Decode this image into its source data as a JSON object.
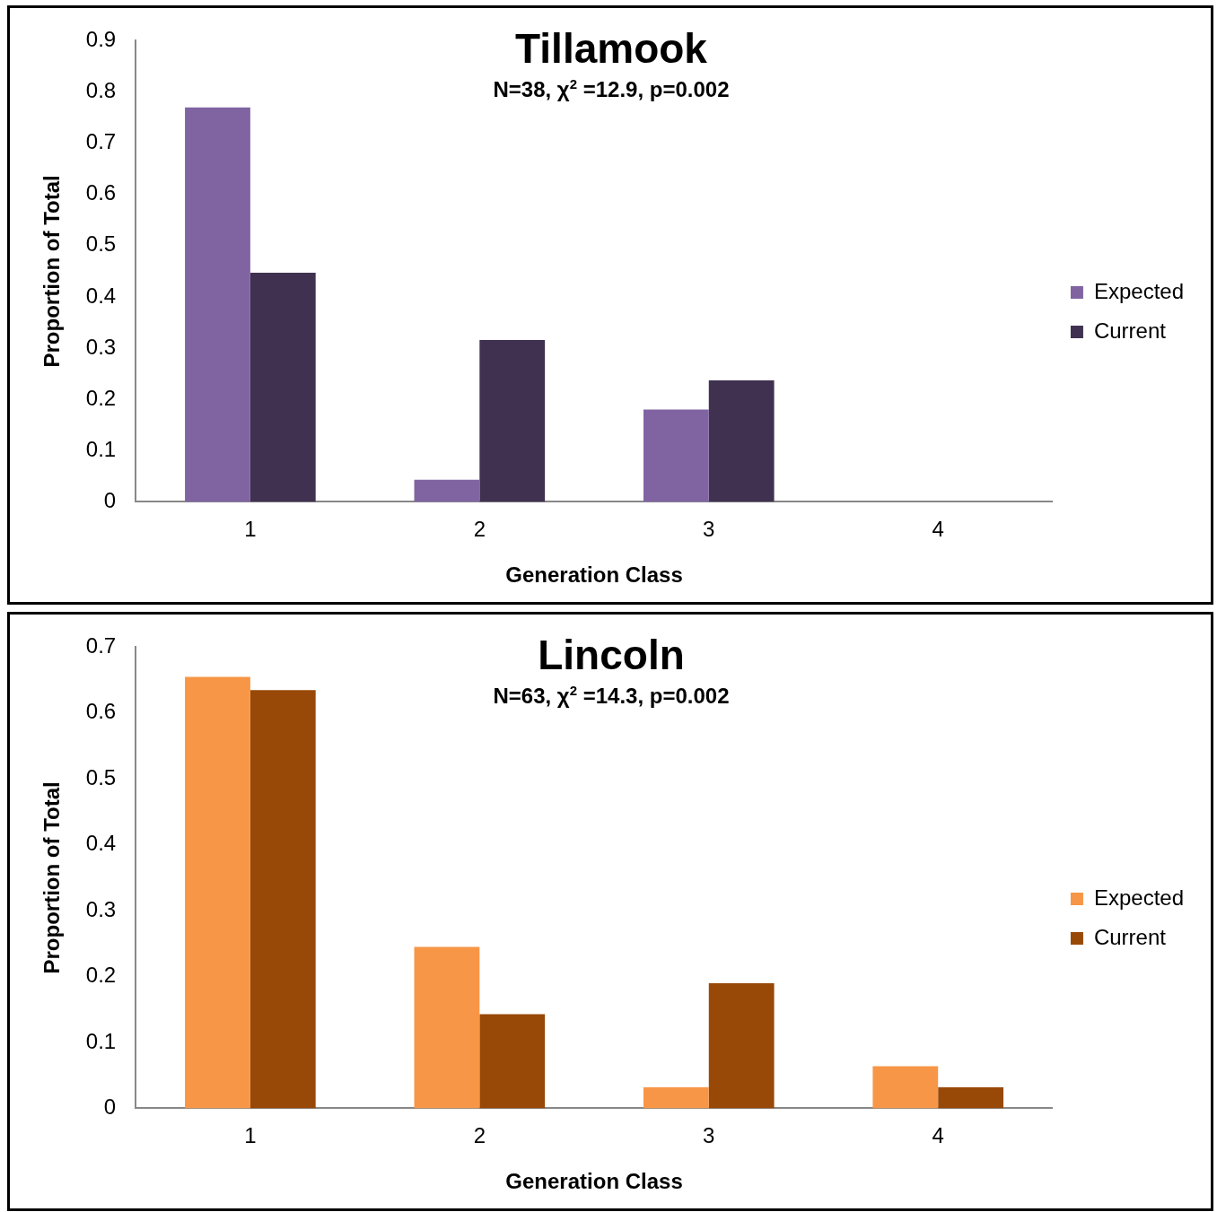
{
  "chart_data": [
    {
      "type": "bar",
      "title": "Tillamook",
      "subtitle": "N=38, χ$^{2}$ =12.9, p=0.002",
      "xlabel": "Generation Class",
      "ylabel": "Proportion of Total",
      "categories": [
        "1",
        "2",
        "3",
        "4"
      ],
      "series": [
        {
          "name": "Expected",
          "color": "#8064a2",
          "values": [
            0.77,
            0.043,
            0.18,
            0
          ]
        },
        {
          "name": "Current",
          "color": "#403151",
          "values": [
            0.447,
            0.316,
            0.237,
            0
          ]
        }
      ],
      "ylim": [
        0,
        0.9
      ],
      "yticks": [
        0,
        0.1,
        0.2,
        0.3,
        0.4,
        0.5,
        0.6,
        0.7,
        0.8,
        0.9
      ],
      "grid": false,
      "legend": "right"
    },
    {
      "type": "bar",
      "title": "Lincoln",
      "subtitle": "N=63, χ$^{2}$ =14.3, p=0.002",
      "xlabel": "Generation Class",
      "ylabel": "Proportion of Total",
      "categories": [
        "1",
        "2",
        "3",
        "4"
      ],
      "series": [
        {
          "name": "Expected",
          "color": "#f79646",
          "values": [
            0.655,
            0.245,
            0.032,
            0.064
          ]
        },
        {
          "name": "Current",
          "color": "#984807",
          "values": [
            0.635,
            0.143,
            0.19,
            0.032
          ]
        }
      ],
      "ylim": [
        0,
        0.7
      ],
      "yticks": [
        0,
        0.1,
        0.2,
        0.3,
        0.4,
        0.5,
        0.6,
        0.7
      ],
      "grid": false,
      "legend": "right"
    }
  ]
}
